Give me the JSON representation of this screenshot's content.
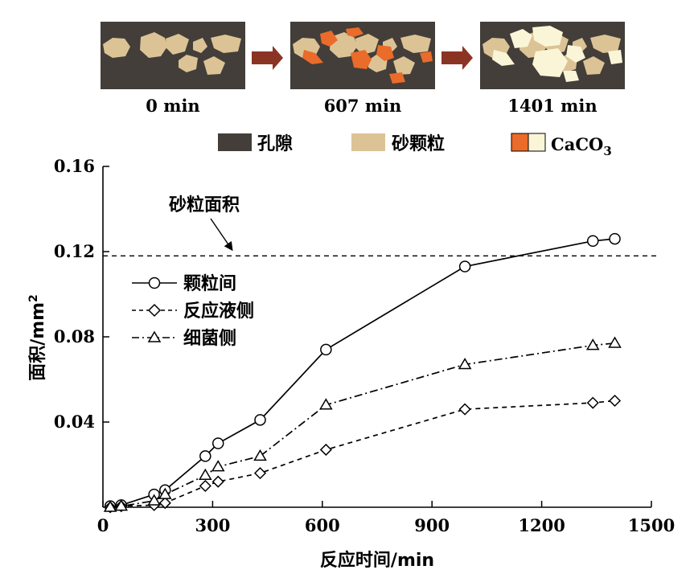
{
  "chart_data": {
    "type": "line",
    "xlabel": "反应时间/min",
    "ylabel_text": "面积/mm",
    "ylabel_sup": "2",
    "xlim": [
      0,
      1500
    ],
    "ylim": [
      0,
      0.16
    ],
    "xticks": [
      0,
      300,
      600,
      900,
      1200,
      1500
    ],
    "yticks": [
      0.04,
      0.08,
      0.12,
      0.16
    ],
    "xtick_labels": [
      "0",
      "300",
      "600",
      "900",
      "1200",
      "1500"
    ],
    "ytick_labels": [
      "0.04",
      "0.08",
      "0.12",
      "0.16"
    ],
    "reference_line": {
      "label": "砂粒面积",
      "y": 0.118
    },
    "series": [
      {
        "name": "颗粒间",
        "marker": "circle",
        "dash": "solid",
        "x": [
          20,
          50,
          140,
          170,
          280,
          315,
          430,
          610,
          990,
          1340,
          1400
        ],
        "y": [
          0.0005,
          0.001,
          0.006,
          0.008,
          0.024,
          0.03,
          0.041,
          0.074,
          0.113,
          0.125,
          0.126
        ]
      },
      {
        "name": "反应液侧",
        "marker": "diamond",
        "dash": "dashed",
        "x": [
          20,
          50,
          140,
          170,
          280,
          315,
          430,
          610,
          990,
          1340,
          1400
        ],
        "y": [
          0.0,
          0.0005,
          0.001,
          0.002,
          0.01,
          0.012,
          0.016,
          0.027,
          0.046,
          0.049,
          0.05
        ]
      },
      {
        "name": "细菌侧",
        "marker": "triangle",
        "dash": "dashdot",
        "x": [
          20,
          50,
          140,
          170,
          280,
          315,
          430,
          610,
          990,
          1340,
          1400
        ],
        "y": [
          0.0,
          0.0005,
          0.003,
          0.006,
          0.015,
          0.019,
          0.024,
          0.048,
          0.067,
          0.076,
          0.077
        ]
      }
    ]
  },
  "images": {
    "captions": [
      "0 min",
      "607 min",
      "1401 min"
    ]
  },
  "legend_top": {
    "pore": "孔隙",
    "sand": "砂颗粒",
    "caco3_main": "CaCO",
    "caco3_sub": "3"
  },
  "colors": {
    "pore": "#433e39",
    "sand": "#dcc395",
    "caco3_orange": "#ea6b2a",
    "caco3_light": "#fbf5d8",
    "arrow": "#8b3424"
  }
}
